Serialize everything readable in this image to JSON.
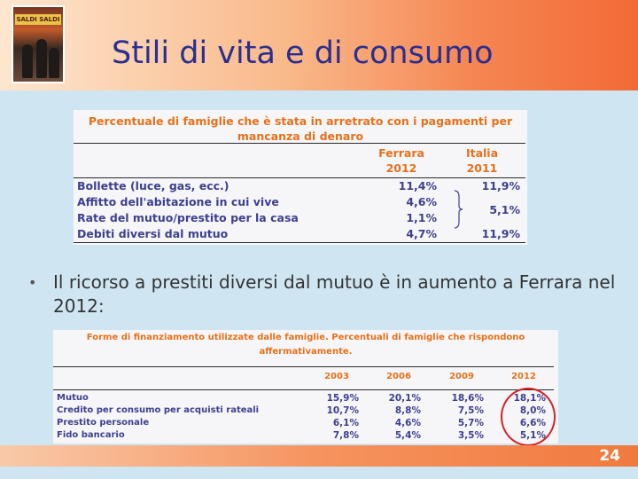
{
  "slide": {
    "title": "Stili di vita e di consumo",
    "page_number": "24",
    "logo_sign_text": "SALDI SALDI"
  },
  "table1": {
    "title": "Percentuale di famiglie che è stata in arretrato con i pagamenti per mancanza di denaro",
    "col1_header": "Ferrara 2012",
    "col2_header": "Italia 2011",
    "rows": [
      {
        "label": "Bollette (luce, gas, ecc.)",
        "ferrara": "11,4%",
        "italia": "11,9%"
      },
      {
        "label": "Affitto dell'abitazione in cui vive",
        "ferrara": "4,6%",
        "italia": ""
      },
      {
        "label": "Rate del mutuo/prestito per la casa",
        "ferrara": "1,1%",
        "italia": ""
      },
      {
        "label": "Debiti diversi dal mutuo",
        "ferrara": "4,7%",
        "italia": "11,9%"
      }
    ],
    "grouped_italia_value": "5,1%"
  },
  "bullet": {
    "text": "Il ricorso a prestiti diversi dal mutuo è in aumento a Ferrara nel 2012:"
  },
  "table2": {
    "title": "Forme di finanziamento utilizzate dalle famiglie. Percentuali di famiglie che rispondono affermativamente.",
    "years": [
      "2003",
      "2006",
      "2009",
      "2012"
    ],
    "rows": [
      {
        "label": "Mutuo",
        "values": [
          "15,9%",
          "20,1%",
          "18,6%",
          "18,1%"
        ]
      },
      {
        "label": "Credito per consumo per acquisti rateali",
        "values": [
          "10,7%",
          "8,8%",
          "7,5%",
          "8,0%"
        ]
      },
      {
        "label": "Prestito personale",
        "values": [
          "6,1%",
          "4,6%",
          "5,7%",
          "6,6%"
        ]
      },
      {
        "label": "Fido bancario",
        "values": [
          "7,8%",
          "5,4%",
          "3,5%",
          "5,1%"
        ]
      }
    ],
    "highlight_color": "#d6232a"
  }
}
